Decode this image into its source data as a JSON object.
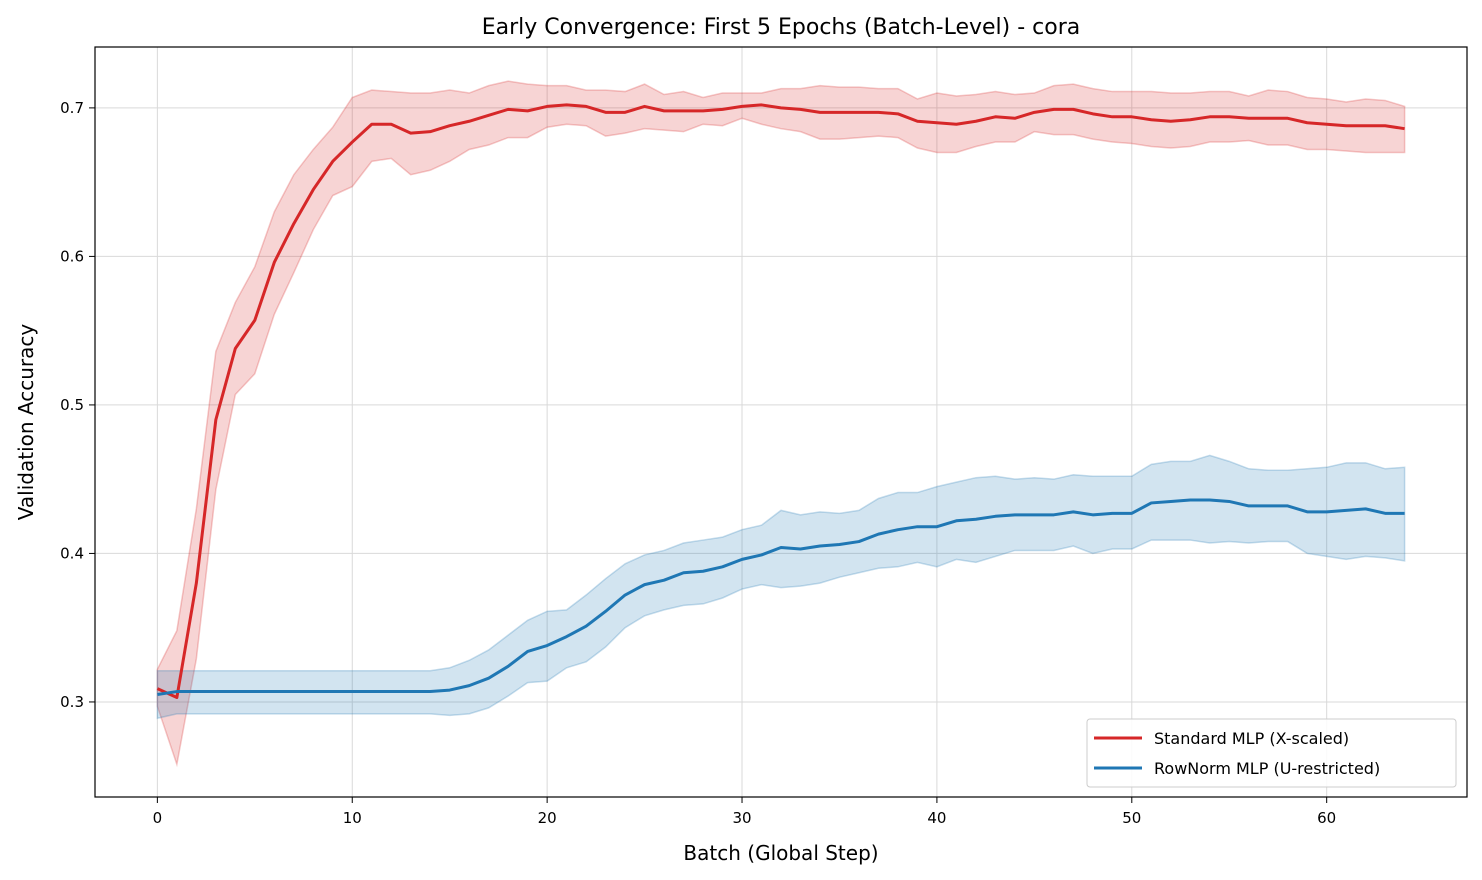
{
  "chart_data": {
    "type": "line",
    "title": "Early Convergence: First 5 Epochs (Batch-Level) - cora",
    "xlabel": "Batch (Global Step)",
    "ylabel": "Validation Accuracy",
    "xlim": [
      -3.2,
      67.2
    ],
    "ylim": [
      0.236,
      0.741
    ],
    "xticks": [
      0,
      10,
      20,
      30,
      40,
      50,
      60
    ],
    "yticks": [
      0.3,
      0.4,
      0.5,
      0.6,
      0.7
    ],
    "xtick_labels": [
      "0",
      "10",
      "20",
      "30",
      "40",
      "50",
      "60"
    ],
    "ytick_labels": [
      "0.3",
      "0.4",
      "0.5",
      "0.6",
      "0.7"
    ],
    "grid": true,
    "legend_position": "lower-right",
    "x": [
      0,
      1,
      2,
      3,
      4,
      5,
      6,
      7,
      8,
      9,
      10,
      11,
      12,
      13,
      14,
      15,
      16,
      17,
      18,
      19,
      20,
      21,
      22,
      23,
      24,
      25,
      26,
      27,
      28,
      29,
      30,
      31,
      32,
      33,
      34,
      35,
      36,
      37,
      38,
      39,
      40,
      41,
      42,
      43,
      44,
      45,
      46,
      47,
      48,
      49,
      50,
      51,
      52,
      53,
      54,
      55,
      56,
      57,
      58,
      59,
      60,
      61,
      62,
      63,
      64
    ],
    "series": [
      {
        "name": "Standard MLP (X-scaled)",
        "color": "#d62728",
        "mean": [
          0.309,
          0.303,
          0.38,
          0.49,
          0.538,
          0.557,
          0.596,
          0.622,
          0.645,
          0.664,
          0.677,
          0.689,
          0.689,
          0.683,
          0.684,
          0.688,
          0.691,
          0.695,
          0.699,
          0.698,
          0.701,
          0.702,
          0.701,
          0.697,
          0.697,
          0.701,
          0.698,
          0.698,
          0.698,
          0.699,
          0.701,
          0.702,
          0.7,
          0.699,
          0.697,
          0.697,
          0.697,
          0.697,
          0.696,
          0.691,
          0.69,
          0.689,
          0.691,
          0.694,
          0.693,
          0.697,
          0.699,
          0.699,
          0.696,
          0.694,
          0.694,
          0.692,
          0.691,
          0.692,
          0.694,
          0.694,
          0.693,
          0.693,
          0.693,
          0.69,
          0.689,
          0.688,
          0.688,
          0.688,
          0.686
        ],
        "upper": [
          0.322,
          0.348,
          0.43,
          0.536,
          0.569,
          0.593,
          0.63,
          0.655,
          0.672,
          0.687,
          0.707,
          0.712,
          0.711,
          0.71,
          0.71,
          0.712,
          0.71,
          0.715,
          0.718,
          0.716,
          0.715,
          0.715,
          0.712,
          0.712,
          0.711,
          0.716,
          0.709,
          0.711,
          0.707,
          0.71,
          0.71,
          0.71,
          0.713,
          0.713,
          0.715,
          0.714,
          0.714,
          0.713,
          0.713,
          0.706,
          0.71,
          0.708,
          0.709,
          0.711,
          0.709,
          0.71,
          0.715,
          0.716,
          0.713,
          0.711,
          0.711,
          0.711,
          0.71,
          0.71,
          0.711,
          0.711,
          0.708,
          0.712,
          0.711,
          0.707,
          0.706,
          0.704,
          0.706,
          0.705,
          0.701
        ],
        "lower": [
          0.297,
          0.258,
          0.329,
          0.443,
          0.507,
          0.521,
          0.561,
          0.589,
          0.618,
          0.641,
          0.647,
          0.664,
          0.666,
          0.655,
          0.658,
          0.664,
          0.672,
          0.675,
          0.68,
          0.68,
          0.687,
          0.689,
          0.688,
          0.681,
          0.683,
          0.686,
          0.685,
          0.684,
          0.689,
          0.688,
          0.693,
          0.689,
          0.686,
          0.684,
          0.679,
          0.679,
          0.68,
          0.681,
          0.68,
          0.673,
          0.67,
          0.67,
          0.674,
          0.677,
          0.677,
          0.684,
          0.682,
          0.682,
          0.679,
          0.677,
          0.676,
          0.674,
          0.673,
          0.674,
          0.677,
          0.677,
          0.678,
          0.675,
          0.675,
          0.672,
          0.672,
          0.671,
          0.67,
          0.67,
          0.67
        ]
      },
      {
        "name": "RowNorm MLP (U-restricted)",
        "color": "#1f77b4",
        "mean": [
          0.305,
          0.307,
          0.307,
          0.307,
          0.307,
          0.307,
          0.307,
          0.307,
          0.307,
          0.307,
          0.307,
          0.307,
          0.307,
          0.307,
          0.307,
          0.308,
          0.311,
          0.316,
          0.324,
          0.334,
          0.338,
          0.344,
          0.351,
          0.361,
          0.372,
          0.379,
          0.382,
          0.387,
          0.388,
          0.391,
          0.396,
          0.399,
          0.404,
          0.403,
          0.405,
          0.406,
          0.408,
          0.413,
          0.416,
          0.418,
          0.418,
          0.422,
          0.423,
          0.425,
          0.426,
          0.426,
          0.426,
          0.428,
          0.426,
          0.427,
          0.427,
          0.434,
          0.435,
          0.436,
          0.436,
          0.435,
          0.432,
          0.432,
          0.432,
          0.428,
          0.428,
          0.429,
          0.43,
          0.427,
          0.427
        ],
        "upper": [
          0.321,
          0.321,
          0.321,
          0.321,
          0.321,
          0.321,
          0.321,
          0.321,
          0.321,
          0.321,
          0.321,
          0.321,
          0.321,
          0.321,
          0.321,
          0.323,
          0.328,
          0.335,
          0.345,
          0.355,
          0.361,
          0.362,
          0.372,
          0.383,
          0.393,
          0.399,
          0.402,
          0.407,
          0.409,
          0.411,
          0.416,
          0.419,
          0.429,
          0.426,
          0.428,
          0.427,
          0.429,
          0.437,
          0.441,
          0.441,
          0.445,
          0.448,
          0.451,
          0.452,
          0.45,
          0.451,
          0.45,
          0.453,
          0.452,
          0.452,
          0.452,
          0.46,
          0.462,
          0.462,
          0.466,
          0.462,
          0.457,
          0.456,
          0.456,
          0.457,
          0.458,
          0.461,
          0.461,
          0.457,
          0.458
        ],
        "lower": [
          0.289,
          0.292,
          0.292,
          0.292,
          0.292,
          0.292,
          0.292,
          0.292,
          0.292,
          0.292,
          0.292,
          0.292,
          0.292,
          0.292,
          0.292,
          0.291,
          0.292,
          0.296,
          0.304,
          0.313,
          0.314,
          0.323,
          0.327,
          0.337,
          0.35,
          0.358,
          0.362,
          0.365,
          0.366,
          0.37,
          0.376,
          0.379,
          0.377,
          0.378,
          0.38,
          0.384,
          0.387,
          0.39,
          0.391,
          0.394,
          0.391,
          0.396,
          0.394,
          0.398,
          0.402,
          0.402,
          0.402,
          0.405,
          0.4,
          0.403,
          0.403,
          0.409,
          0.409,
          0.409,
          0.407,
          0.408,
          0.407,
          0.408,
          0.408,
          0.4,
          0.398,
          0.396,
          0.398,
          0.397,
          0.395
        ]
      }
    ]
  }
}
